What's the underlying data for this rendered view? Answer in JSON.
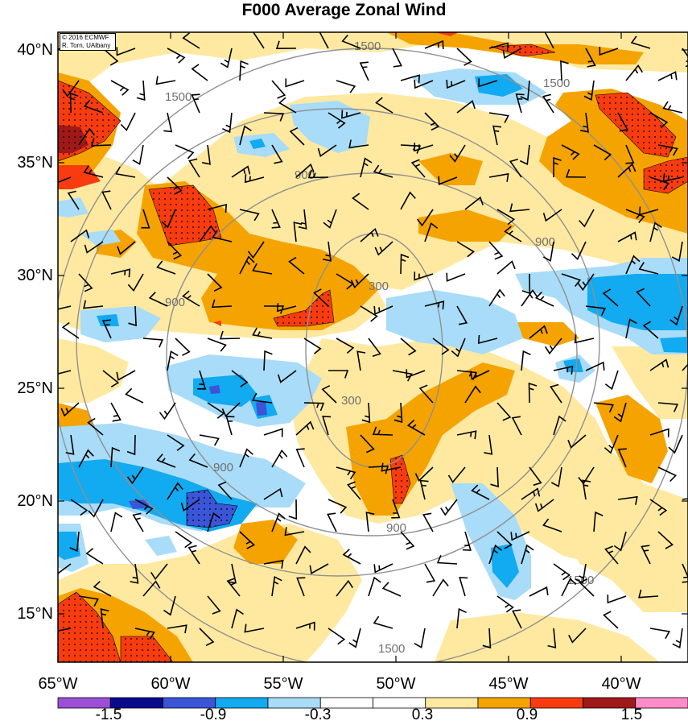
{
  "title": "F000 Average Zonal Wind",
  "credit": {
    "line1": "© 2016 ECMWF",
    "line2": "R. Torn, UAlbany"
  },
  "lat_labels": [
    "40°N",
    "35°N",
    "30°N",
    "25°N",
    "20°N",
    "15°N"
  ],
  "lon_labels": [
    "65°W",
    "60°W",
    "55°W",
    "50°W",
    "45°W",
    "40°W"
  ],
  "contour_labels": [
    "300",
    "300",
    "900",
    "900",
    "900",
    "900",
    "900",
    "1500",
    "1500",
    "1500",
    "1500",
    "1500"
  ],
  "colorbar": {
    "labels": [
      "-1.5",
      "-0.9",
      "-0.3",
      "0.3",
      "0.9",
      "1.5"
    ],
    "colors": [
      "#9b4fd6",
      "#0a0a8c",
      "#3a55d8",
      "#12aaf0",
      "#a8dcf8",
      "#ffffff",
      "#ffffff",
      "#ffe9a0",
      "#f5a300",
      "#f83c10",
      "#a01818",
      "#ff8cc8"
    ]
  },
  "colors": {
    "light_orange": "#ffe9a0",
    "orange": "#f5a300",
    "red": "#f83c10",
    "dark_red": "#a01818",
    "light_blue": "#a8dcf8",
    "blue": "#12aaf0",
    "dark_blue": "#3a55d8",
    "contour": "#909090"
  }
}
